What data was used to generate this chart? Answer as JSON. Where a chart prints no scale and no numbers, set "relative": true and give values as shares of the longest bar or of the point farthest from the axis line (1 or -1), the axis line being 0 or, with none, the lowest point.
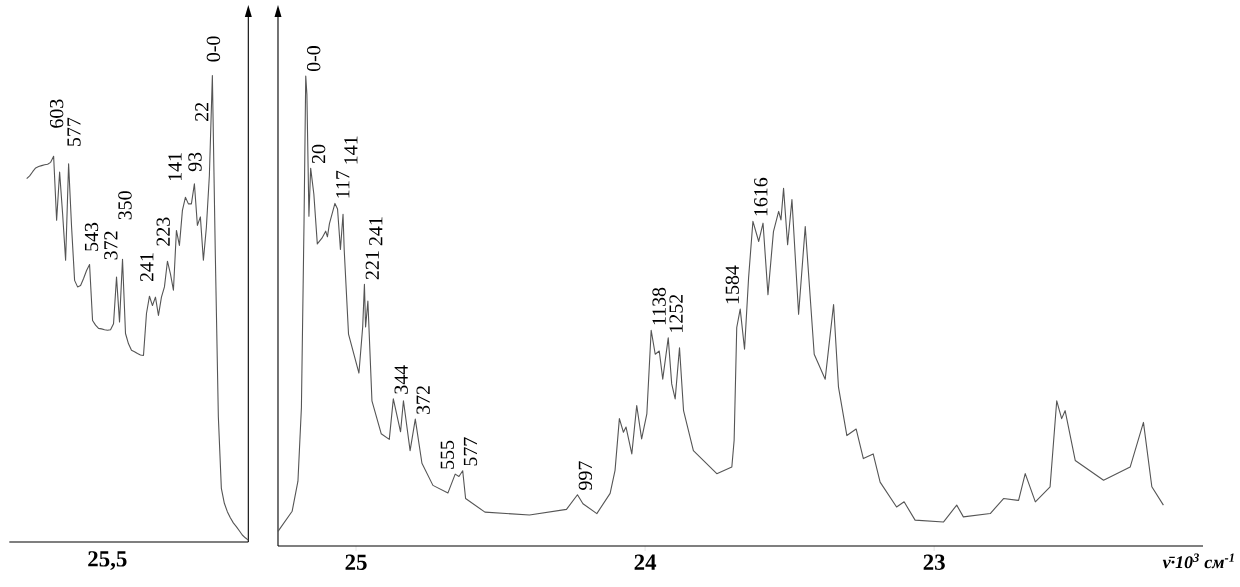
{
  "chart_data": [
    {
      "type": "line",
      "relative": true,
      "color": "#555555",
      "categories": [
        null,
        null,
        null,
        null,
        null,
        null,
        null,
        null,
        null,
        null,
        null,
        null,
        null,
        null,
        null,
        null,
        null,
        null,
        null,
        null,
        null,
        null,
        null,
        null,
        null,
        null,
        null,
        null,
        null,
        null,
        null,
        null,
        null,
        null,
        null,
        null,
        null,
        null,
        null,
        null,
        null,
        null,
        null,
        null,
        null,
        null,
        null,
        null,
        null,
        null,
        null,
        null,
        null,
        null,
        null,
        null,
        null,
        null,
        null,
        null,
        null,
        null,
        null,
        null,
        null,
        null,
        null,
        null,
        null,
        null,
        null,
        null,
        null,
        null,
        null
      ],
      "values": [
        0.779,
        0.785,
        0.794,
        0.802,
        0.805,
        0.807,
        0.809,
        0.81,
        0.814,
        0.827,
        0.69,
        0.793,
        0.704,
        0.604,
        0.811,
        0.675,
        0.561,
        0.547,
        0.55,
        0.565,
        0.582,
        0.595,
        0.475,
        0.465,
        0.458,
        0.457,
        0.455,
        0.454,
        0.455,
        0.468,
        0.568,
        0.472,
        0.606,
        0.447,
        0.425,
        0.411,
        0.408,
        0.404,
        0.401,
        0.4,
        0.49,
        0.527,
        0.507,
        0.525,
        0.486,
        0.525,
        0.547,
        0.602,
        0.575,
        0.54,
        0.668,
        0.636,
        0.711,
        0.739,
        0.725,
        0.725,
        0.768,
        0.679,
        0.697,
        0.604,
        0.675,
        0.786,
        1.0,
        0.611,
        0.268,
        0.115,
        0.083,
        0.065,
        0.052,
        0.041,
        0.033,
        0.024,
        0.015,
        0.009,
        0.004
      ],
      "annotations": [
        "25,5",
        "603",
        "577",
        "543",
        "372",
        "350",
        "241",
        "223",
        "141",
        "93",
        "22",
        "0-0"
      ]
    },
    {
      "type": "line",
      "relative": true,
      "color": "#555555",
      "xlim": [
        25.27,
        22.07
      ],
      "xticks": [
        25,
        24,
        23
      ],
      "xlabel": "ν̄·10$^{3}$ см$^{-1}$",
      "x": [
        25.27,
        25.221,
        25.201,
        25.189,
        25.18,
        25.174,
        25.17,
        25.163,
        25.157,
        25.146,
        25.134,
        25.118,
        25.105,
        25.099,
        25.092,
        25.073,
        25.064,
        25.054,
        25.045,
        25.041,
        25.026,
        24.99,
        24.977,
        24.971,
        24.967,
        24.959,
        24.945,
        24.913,
        24.885,
        24.871,
        24.846,
        24.836,
        24.813,
        24.795,
        24.772,
        24.734,
        24.682,
        24.657,
        24.644,
        24.631,
        24.621,
        24.554,
        24.4,
        24.272,
        24.234,
        24.215,
        24.167,
        24.121,
        24.104,
        24.089,
        24.075,
        24.066,
        24.046,
        24.029,
        24.012,
        23.994,
        23.979,
        23.965,
        23.951,
        23.939,
        23.92,
        23.908,
        23.896,
        23.881,
        23.867,
        23.833,
        23.752,
        23.7,
        23.692,
        23.683,
        23.671,
        23.656,
        23.642,
        23.627,
        23.607,
        23.592,
        23.575,
        23.556,
        23.538,
        23.53,
        23.521,
        23.507,
        23.492,
        23.469,
        23.446,
        23.415,
        23.377,
        23.348,
        23.331,
        23.302,
        23.27,
        23.245,
        23.211,
        23.187,
        23.13,
        23.104,
        23.066,
        22.968,
        22.922,
        22.899,
        22.806,
        22.76,
        22.708,
        22.685,
        22.65,
        22.599,
        22.576,
        22.559,
        22.547,
        22.512,
        22.414,
        22.322,
        22.276,
        22.247,
        22.207
      ],
      "values": [
        0.031,
        0.074,
        0.138,
        0.294,
        0.686,
        1.0,
        0.961,
        0.702,
        0.804,
        0.749,
        0.643,
        0.655,
        0.67,
        0.658,
        0.686,
        0.729,
        0.717,
        0.631,
        0.706,
        0.631,
        0.451,
        0.368,
        0.466,
        0.557,
        0.466,
        0.521,
        0.309,
        0.239,
        0.227,
        0.313,
        0.243,
        0.309,
        0.203,
        0.27,
        0.176,
        0.129,
        0.113,
        0.153,
        0.148,
        0.16,
        0.101,
        0.072,
        0.066,
        0.078,
        0.109,
        0.09,
        0.069,
        0.112,
        0.161,
        0.271,
        0.242,
        0.253,
        0.196,
        0.299,
        0.228,
        0.281,
        0.459,
        0.408,
        0.415,
        0.355,
        0.443,
        0.345,
        0.313,
        0.422,
        0.288,
        0.203,
        0.154,
        0.168,
        0.225,
        0.465,
        0.504,
        0.419,
        0.571,
        0.691,
        0.648,
        0.687,
        0.535,
        0.669,
        0.712,
        0.694,
        0.761,
        0.641,
        0.737,
        0.493,
        0.68,
        0.408,
        0.355,
        0.514,
        0.338,
        0.235,
        0.249,
        0.186,
        0.196,
        0.136,
        0.083,
        0.094,
        0.055,
        0.051,
        0.087,
        0.062,
        0.069,
        0.101,
        0.097,
        0.154,
        0.094,
        0.126,
        0.309,
        0.271,
        0.288,
        0.182,
        0.14,
        0.168,
        0.263,
        0.126,
        0.087
      ],
      "annotations": [
        {
          "text": "0-0",
          "x": 25.174,
          "y": 1.0
        },
        {
          "text": "20",
          "x": 25.157,
          "y": 0.804
        },
        {
          "text": "117",
          "x": 25.073,
          "y": 0.729
        },
        {
          "text": "141",
          "x": 25.045,
          "y": 0.706
        },
        {
          "text": "221",
          "x": 24.971,
          "y": 0.557
        },
        {
          "text": "241",
          "x": 24.959,
          "y": 0.521
        },
        {
          "text": "344",
          "x": 24.871,
          "y": 0.313
        },
        {
          "text": "372",
          "x": 24.795,
          "y": 0.27
        },
        {
          "text": "555",
          "x": 24.657,
          "y": 0.153
        },
        {
          "text": "577",
          "x": 24.631,
          "y": 0.16
        },
        {
          "text": "997",
          "x": 24.234,
          "y": 0.109
        },
        {
          "text": "1138",
          "x": 23.979,
          "y": 0.459
        },
        {
          "text": "1252",
          "x": 23.92,
          "y": 0.443
        },
        {
          "text": "1584",
          "x": 23.671,
          "y": 0.504
        },
        {
          "text": "1616",
          "x": 23.627,
          "y": 0.691
        }
      ]
    }
  ]
}
